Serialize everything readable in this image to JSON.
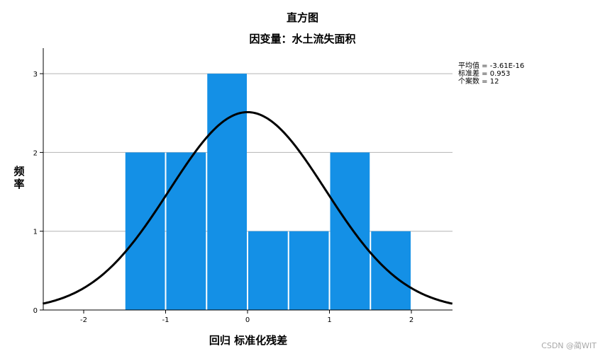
{
  "chart_data": {
    "type": "bar",
    "title": "直方图",
    "subtitle": "因变量：水土流失面积",
    "xlabel": "回归 标准化残差",
    "ylabel": "频\n率",
    "x_ticks": [
      -2,
      -1,
      0,
      1,
      2
    ],
    "y_ticks": [
      0,
      1,
      2,
      3
    ],
    "xlim": [
      -2.5,
      2.5
    ],
    "ylim": [
      0,
      3.3
    ],
    "grid": "horizontal",
    "bin_width": 0.5,
    "bins": [
      {
        "from": -1.5,
        "to": -1.0,
        "count": 2
      },
      {
        "from": -1.0,
        "to": -0.5,
        "count": 2
      },
      {
        "from": -0.5,
        "to": 0.0,
        "count": 3
      },
      {
        "from": 0.0,
        "to": 0.5,
        "count": 1
      },
      {
        "from": 0.5,
        "to": 1.0,
        "count": 1
      },
      {
        "from": 1.0,
        "to": 1.5,
        "count": 2
      },
      {
        "from": 1.5,
        "to": 2.0,
        "count": 1
      }
    ],
    "normal_curve": {
      "mean": -3.61e-16,
      "std": 0.953,
      "n": 12
    },
    "stats_lines": [
      "平均值 = -3.61E-16",
      "标准差 = 0.953",
      "个案数 = 12"
    ],
    "colors": {
      "bar": "#1490e6",
      "curve": "#000000",
      "grid": "#b4b4b4"
    }
  },
  "watermark": "CSDN @蔺WIT"
}
